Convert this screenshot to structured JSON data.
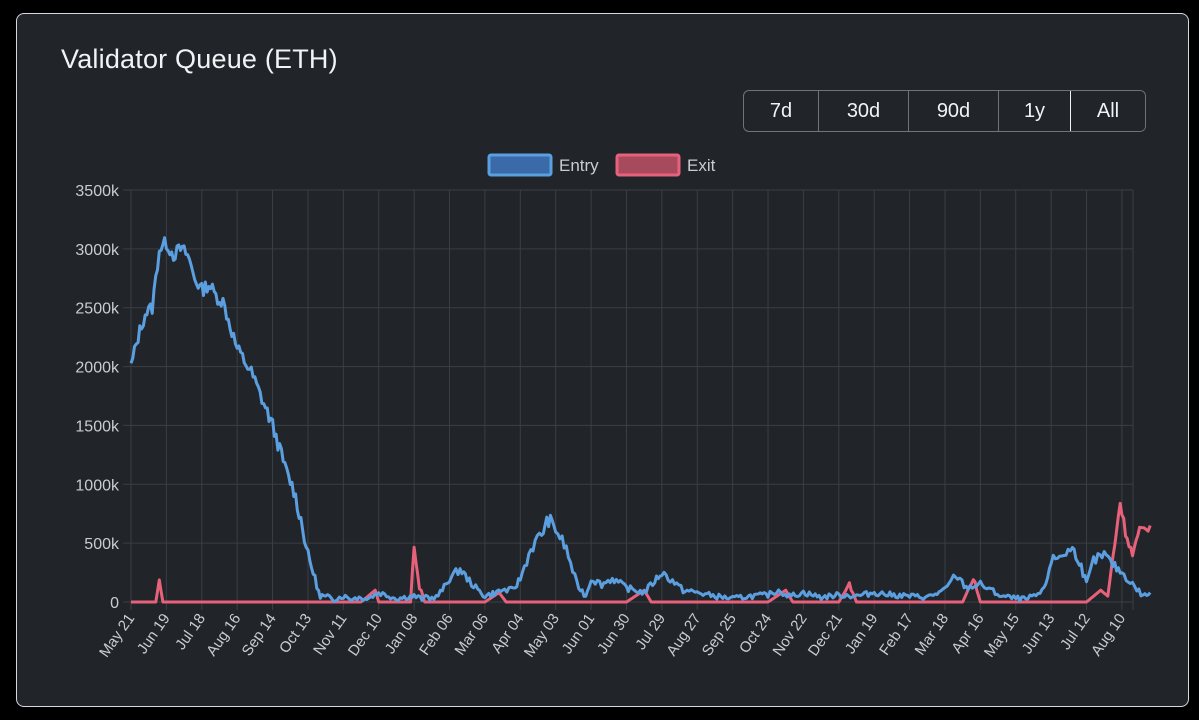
{
  "title": "Validator Queue (ETH)",
  "ranges": [
    {
      "label": "7d",
      "active": false
    },
    {
      "label": "30d",
      "active": false
    },
    {
      "label": "90d",
      "active": false
    },
    {
      "label": "1y",
      "active": false
    },
    {
      "label": "All",
      "active": true
    }
  ],
  "colors": {
    "entry": "#5b9fe0",
    "entry_fill": "#3a6aa8",
    "exit": "#e8617a",
    "exit_fill": "#a84a5e",
    "grid": "#3a3f45",
    "text": "#c9ccd0"
  },
  "chart_data": {
    "type": "line",
    "title": "",
    "xlabel": "",
    "ylabel": "",
    "ylim": [
      0,
      3500
    ],
    "yticks": [
      0,
      500,
      1000,
      1500,
      2000,
      2500,
      3000,
      3500
    ],
    "ytick_labels": [
      "0",
      "500k",
      "1000k",
      "1500k",
      "2000k",
      "2500k",
      "3000k",
      "3500k"
    ],
    "categories": [
      "May 21",
      "Jun 19",
      "Jul 18",
      "Aug 16",
      "Sep 14",
      "Oct 13",
      "Nov 11",
      "Dec 10",
      "Jan 08",
      "Feb 06",
      "Mar 06",
      "Apr 04",
      "May 03",
      "Jun 01",
      "Jun 30",
      "Jul 29",
      "Aug 27",
      "Sep 25",
      "Oct 24",
      "Nov 22",
      "Dec 21",
      "Jan 19",
      "Feb 17",
      "Mar 18",
      "Apr 16",
      "May 15",
      "Jun 13",
      "Jul 12",
      "Aug 10"
    ],
    "legend": {
      "position": "top-center",
      "entries": [
        "Entry",
        "Exit"
      ]
    },
    "grid": true,
    "series": [
      {
        "name": "Entry",
        "points": [
          [
            0,
            2000
          ],
          [
            0.2,
            2250
          ],
          [
            0.4,
            2450
          ],
          [
            0.6,
            2500
          ],
          [
            0.8,
            3000
          ],
          [
            1.0,
            3050
          ],
          [
            1.2,
            2950
          ],
          [
            1.4,
            3000
          ],
          [
            1.6,
            2950
          ],
          [
            1.8,
            2750
          ],
          [
            2.0,
            2650
          ],
          [
            2.2,
            2700
          ],
          [
            2.4,
            2600
          ],
          [
            2.6,
            2550
          ],
          [
            2.8,
            2350
          ],
          [
            3.0,
            2150
          ],
          [
            3.2,
            2050
          ],
          [
            3.4,
            1950
          ],
          [
            3.6,
            1800
          ],
          [
            3.8,
            1650
          ],
          [
            4.0,
            1500
          ],
          [
            4.2,
            1300
          ],
          [
            4.4,
            1100
          ],
          [
            4.6,
            950
          ],
          [
            4.8,
            700
          ],
          [
            5.0,
            400
          ],
          [
            5.2,
            200
          ],
          [
            5.35,
            30
          ],
          [
            5.5,
            0
          ],
          [
            6.0,
            50
          ],
          [
            6.5,
            0
          ],
          [
            7.0,
            80
          ],
          [
            7.5,
            30
          ],
          [
            8.0,
            50
          ],
          [
            8.5,
            0
          ],
          [
            8.8,
            100
          ],
          [
            9.0,
            200
          ],
          [
            9.3,
            280
          ],
          [
            9.5,
            200
          ],
          [
            9.8,
            100
          ],
          [
            10.0,
            50
          ],
          [
            10.5,
            100
          ],
          [
            10.8,
            100
          ],
          [
            11.0,
            200
          ],
          [
            11.3,
            450
          ],
          [
            11.6,
            580
          ],
          [
            11.8,
            700
          ],
          [
            12.0,
            620
          ],
          [
            12.3,
            450
          ],
          [
            12.6,
            150
          ],
          [
            12.85,
            50
          ],
          [
            13.0,
            200
          ],
          [
            13.3,
            150
          ],
          [
            13.6,
            200
          ],
          [
            14.0,
            120
          ],
          [
            14.5,
            80
          ],
          [
            14.8,
            180
          ],
          [
            15.0,
            250
          ],
          [
            15.3,
            180
          ],
          [
            15.6,
            100
          ],
          [
            16.0,
            80
          ],
          [
            16.5,
            50
          ],
          [
            17.0,
            30
          ],
          [
            17.5,
            50
          ],
          [
            18.0,
            60
          ],
          [
            18.3,
            100
          ],
          [
            18.6,
            50
          ],
          [
            19.0,
            80
          ],
          [
            19.5,
            40
          ],
          [
            20.0,
            60
          ],
          [
            20.5,
            50
          ],
          [
            21.0,
            80
          ],
          [
            21.5,
            60
          ],
          [
            22.0,
            50
          ],
          [
            22.5,
            40
          ],
          [
            23.0,
            100
          ],
          [
            23.3,
            230
          ],
          [
            23.6,
            120
          ],
          [
            24.0,
            150
          ],
          [
            24.3,
            100
          ],
          [
            24.6,
            50
          ],
          [
            25.0,
            30
          ],
          [
            25.4,
            20
          ],
          [
            25.8,
            100
          ],
          [
            26.0,
            350
          ],
          [
            26.3,
            400
          ],
          [
            26.6,
            450
          ],
          [
            26.8,
            350
          ],
          [
            27.0,
            150
          ],
          [
            27.2,
            350
          ],
          [
            27.5,
            400
          ],
          [
            27.8,
            300
          ],
          [
            28.0,
            250
          ],
          [
            28.3,
            150
          ],
          [
            28.6,
            50
          ],
          [
            28.8,
            80
          ]
        ]
      },
      {
        "name": "Exit",
        "points": [
          [
            0,
            0
          ],
          [
            0.7,
            0
          ],
          [
            0.8,
            180
          ],
          [
            0.9,
            0
          ],
          [
            4.0,
            0
          ],
          [
            6.5,
            0
          ],
          [
            6.9,
            100
          ],
          [
            7.0,
            0
          ],
          [
            7.9,
            0
          ],
          [
            8.0,
            500
          ],
          [
            8.1,
            200
          ],
          [
            8.3,
            0
          ],
          [
            10.0,
            0
          ],
          [
            10.4,
            80
          ],
          [
            10.6,
            0
          ],
          [
            14.0,
            0
          ],
          [
            14.5,
            100
          ],
          [
            14.7,
            0
          ],
          [
            18.0,
            0
          ],
          [
            18.5,
            100
          ],
          [
            18.7,
            0
          ],
          [
            20.0,
            0
          ],
          [
            20.3,
            150
          ],
          [
            20.5,
            0
          ],
          [
            23.5,
            0
          ],
          [
            23.8,
            200
          ],
          [
            24.0,
            0
          ],
          [
            26.0,
            0
          ],
          [
            27.0,
            0
          ],
          [
            27.4,
            100
          ],
          [
            27.6,
            50
          ],
          [
            27.8,
            500
          ],
          [
            27.95,
            850
          ],
          [
            28.1,
            600
          ],
          [
            28.3,
            400
          ],
          [
            28.5,
            600
          ],
          [
            28.8,
            650
          ]
        ]
      }
    ]
  }
}
